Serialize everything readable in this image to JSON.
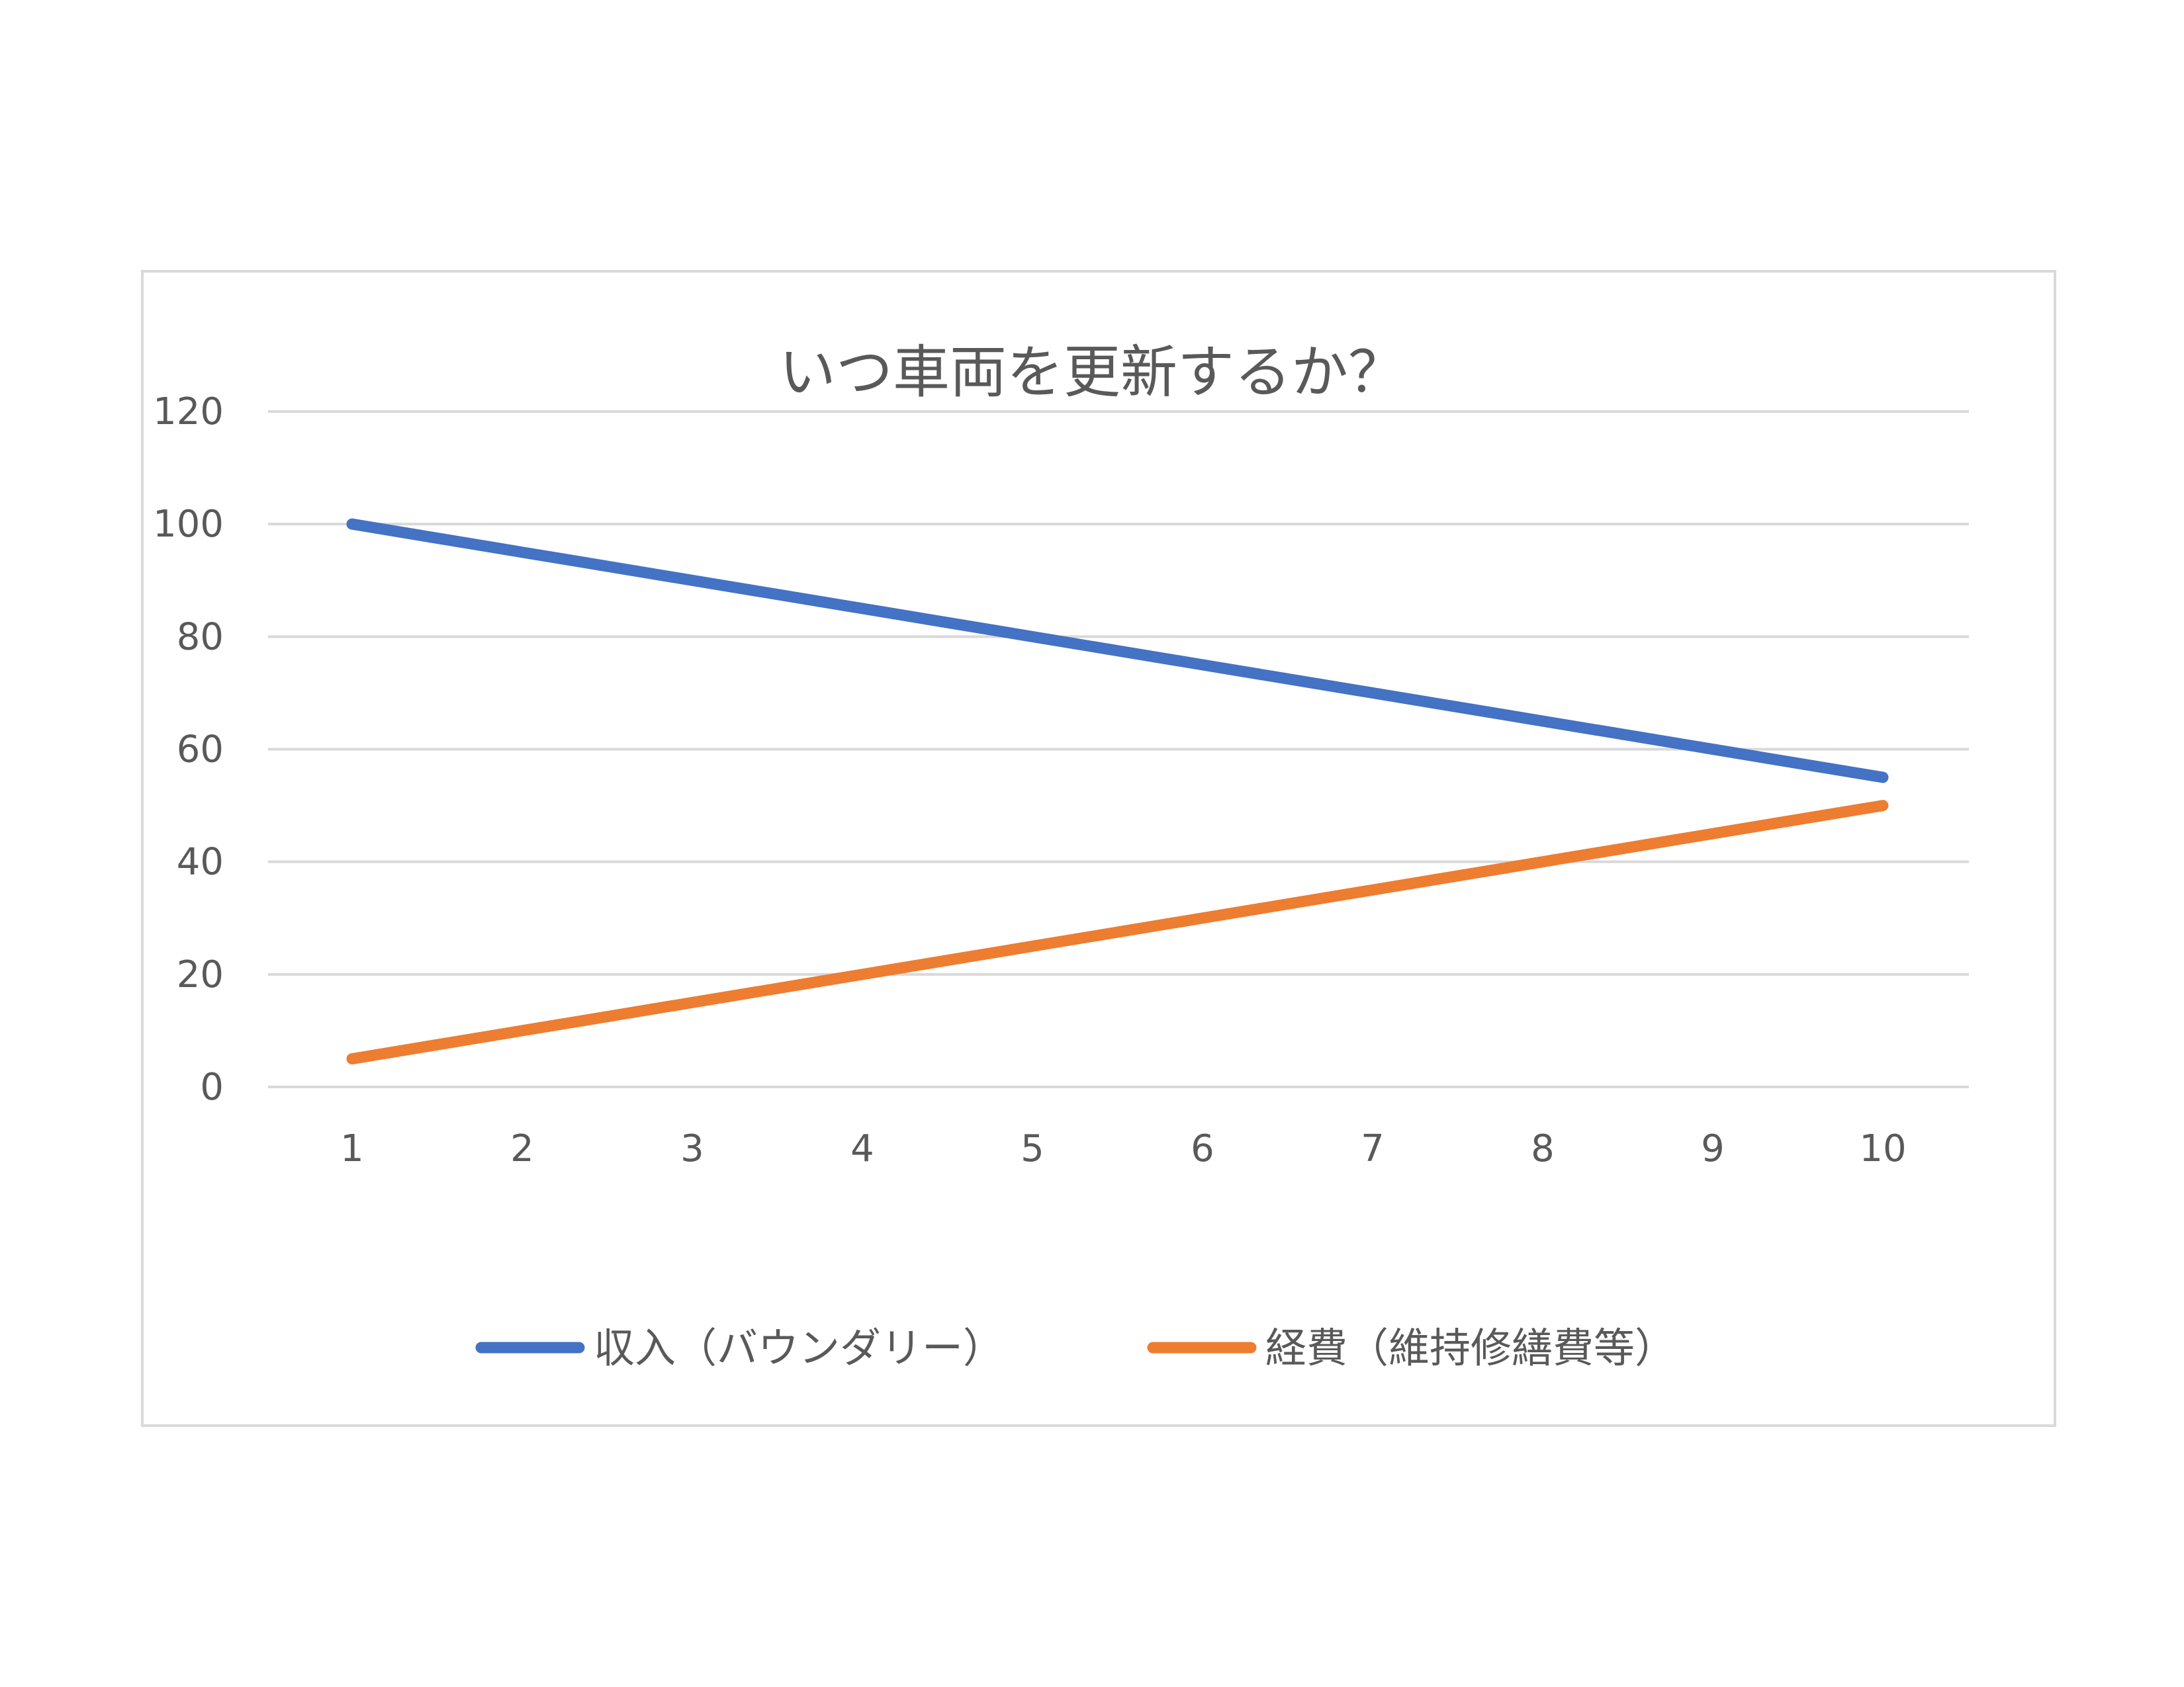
{
  "chart_data": {
    "type": "line",
    "title": "いつ車両を更新するか？",
    "xlabel": "",
    "ylabel": "",
    "categories": [
      "1",
      "2",
      "3",
      "4",
      "5",
      "6",
      "7",
      "8",
      "9",
      "10"
    ],
    "ylim": [
      0,
      120
    ],
    "yticks": [
      "0",
      "20",
      "40",
      "60",
      "80",
      "100",
      "120"
    ],
    "grid": true,
    "legend_position": "bottom",
    "series": [
      {
        "name": "収入（バウンダリー）",
        "color": "#4472C4",
        "values": [
          100,
          95,
          90,
          85,
          80,
          75,
          70,
          65,
          60,
          55
        ]
      },
      {
        "name": "経費（維持修繕費等）",
        "color": "#ED7D31",
        "values": [
          5,
          10,
          15,
          20,
          25,
          30,
          35,
          40,
          45,
          50
        ]
      }
    ]
  }
}
